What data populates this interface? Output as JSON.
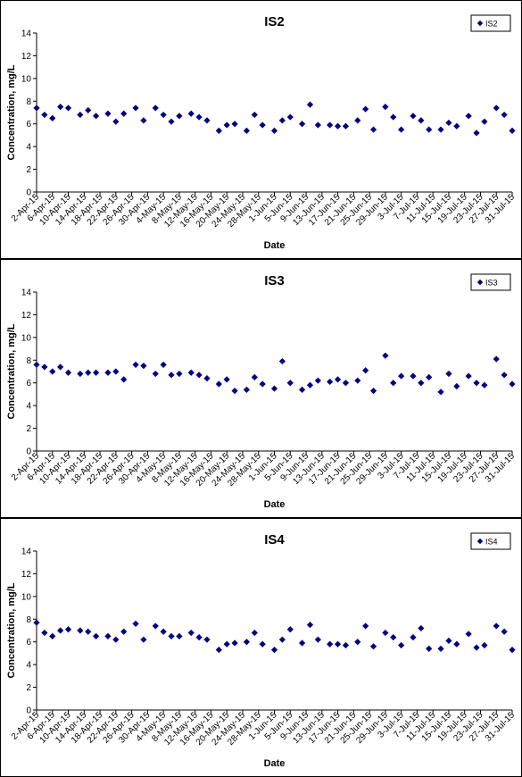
{
  "chart_data": [
    {
      "type": "scatter",
      "title": "IS2",
      "xlabel": "Date",
      "ylabel": "Concentration, mg/L",
      "ylim": [
        0,
        14
      ],
      "yticks": [
        0,
        2,
        4,
        6,
        8,
        10,
        12,
        14
      ],
      "date_range": [
        "2-Apr-15",
        "31-Jul-15"
      ],
      "x_tick_labels": [
        "2-Apr-15",
        "6-Apr-15",
        "10-Apr-15",
        "14-Apr-15",
        "18-Apr-15",
        "22-Apr-15",
        "26-Apr-15",
        "30-Apr-15",
        "4-May-15",
        "8-May-15",
        "12-May-15",
        "16-May-15",
        "20-May-15",
        "24-May-15",
        "28-May-15",
        "1-Jun-15",
        "5-Jun-15",
        "9-Jun-15",
        "13-Jun-15",
        "17-Jun-15",
        "21-Jun-15",
        "25-Jun-15",
        "29-Jun-15",
        "3-Jul-15",
        "7-Jul-15",
        "11-Jul-15",
        "15-Jul-15",
        "19-Jul-15",
        "23-Jul-15",
        "27-Jul-15",
        "31-Jul-15"
      ],
      "grid": false,
      "legend": "top-right",
      "color": "#000080",
      "series": [
        {
          "name": "IS2",
          "x": [
            "2-Apr-15",
            "4-Apr-15",
            "6-Apr-15",
            "8-Apr-15",
            "10-Apr-15",
            "13-Apr-15",
            "15-Apr-15",
            "17-Apr-15",
            "20-Apr-15",
            "22-Apr-15",
            "24-Apr-15",
            "27-Apr-15",
            "29-Apr-15",
            "2-May-15",
            "4-May-15",
            "6-May-15",
            "8-May-15",
            "11-May-15",
            "13-May-15",
            "15-May-15",
            "18-May-15",
            "20-May-15",
            "22-May-15",
            "25-May-15",
            "27-May-15",
            "29-May-15",
            "1-Jun-15",
            "3-Jun-15",
            "5-Jun-15",
            "8-Jun-15",
            "10-Jun-15",
            "12-Jun-15",
            "15-Jun-15",
            "17-Jun-15",
            "19-Jun-15",
            "22-Jun-15",
            "24-Jun-15",
            "26-Jun-15",
            "29-Jun-15",
            "1-Jul-15",
            "3-Jul-15",
            "6-Jul-15",
            "8-Jul-15",
            "10-Jul-15",
            "13-Jul-15",
            "15-Jul-15",
            "17-Jul-15",
            "20-Jul-15",
            "22-Jul-15",
            "24-Jul-15",
            "27-Jul-15",
            "29-Jul-15",
            "31-Jul-15"
          ],
          "y": [
            7.4,
            6.8,
            6.5,
            7.5,
            7.4,
            6.8,
            7.2,
            6.7,
            6.9,
            6.2,
            6.9,
            7.4,
            6.3,
            7.4,
            6.8,
            6.2,
            6.7,
            6.9,
            6.6,
            6.3,
            5.4,
            5.9,
            6.0,
            5.4,
            6.8,
            5.9,
            5.4,
            6.3,
            6.6,
            6.0,
            7.7,
            5.9,
            5.9,
            5.8,
            5.8,
            6.3,
            7.3,
            5.5,
            7.5,
            6.6,
            5.5,
            6.7,
            6.3,
            5.5,
            5.5,
            6.1,
            5.8,
            6.7,
            5.2,
            6.2,
            7.4,
            6.8,
            5.4
          ]
        }
      ]
    },
    {
      "type": "scatter",
      "title": "IS3",
      "xlabel": "Date",
      "ylabel": "Concentration, mg/L",
      "ylim": [
        0,
        14
      ],
      "yticks": [
        0,
        2,
        4,
        6,
        8,
        10,
        12,
        14
      ],
      "date_range": [
        "2-Apr-15",
        "31-Jul-15"
      ],
      "x_tick_labels": [
        "2-Apr-15",
        "6-Apr-15",
        "10-Apr-15",
        "14-Apr-15",
        "18-Apr-15",
        "22-Apr-15",
        "26-Apr-15",
        "30-Apr-15",
        "4-May-15",
        "8-May-15",
        "12-May-15",
        "16-May-15",
        "20-May-15",
        "24-May-15",
        "28-May-15",
        "1-Jun-15",
        "5-Jun-15",
        "9-Jun-15",
        "13-Jun-15",
        "17-Jun-15",
        "21-Jun-15",
        "25-Jun-15",
        "29-Jun-15",
        "3-Jul-15",
        "7-Jul-15",
        "11-Jul-15",
        "15-Jul-15",
        "19-Jul-15",
        "23-Jul-15",
        "27-Jul-15",
        "31-Jul-15"
      ],
      "grid": false,
      "legend": "top-right",
      "color": "#000080",
      "series": [
        {
          "name": "IS3",
          "x": [
            "2-Apr-15",
            "4-Apr-15",
            "6-Apr-15",
            "8-Apr-15",
            "10-Apr-15",
            "13-Apr-15",
            "15-Apr-15",
            "17-Apr-15",
            "20-Apr-15",
            "22-Apr-15",
            "24-Apr-15",
            "27-Apr-15",
            "29-Apr-15",
            "2-May-15",
            "4-May-15",
            "6-May-15",
            "8-May-15",
            "11-May-15",
            "13-May-15",
            "15-May-15",
            "18-May-15",
            "20-May-15",
            "22-May-15",
            "25-May-15",
            "27-May-15",
            "29-May-15",
            "1-Jun-15",
            "3-Jun-15",
            "5-Jun-15",
            "8-Jun-15",
            "10-Jun-15",
            "12-Jun-15",
            "15-Jun-15",
            "17-Jun-15",
            "19-Jun-15",
            "22-Jun-15",
            "24-Jun-15",
            "26-Jun-15",
            "29-Jun-15",
            "1-Jul-15",
            "3-Jul-15",
            "6-Jul-15",
            "8-Jul-15",
            "10-Jul-15",
            "13-Jul-15",
            "15-Jul-15",
            "17-Jul-15",
            "20-Jul-15",
            "22-Jul-15",
            "24-Jul-15",
            "27-Jul-15",
            "29-Jul-15",
            "31-Jul-15"
          ],
          "y": [
            7.6,
            7.4,
            7.0,
            7.4,
            6.9,
            6.8,
            6.9,
            6.9,
            6.9,
            7.0,
            6.3,
            7.6,
            7.5,
            6.8,
            7.6,
            6.7,
            6.8,
            6.9,
            6.7,
            6.4,
            5.9,
            6.3,
            5.3,
            5.4,
            6.5,
            5.9,
            5.5,
            7.9,
            6.0,
            5.4,
            5.8,
            6.2,
            6.1,
            6.3,
            6.0,
            6.2,
            7.1,
            5.3,
            8.4,
            6.0,
            6.6,
            6.6,
            6.0,
            6.5,
            5.2,
            6.8,
            5.7,
            6.6,
            6.0,
            5.8,
            8.1,
            6.7,
            5.9
          ]
        }
      ]
    },
    {
      "type": "scatter",
      "title": "IS4",
      "xlabel": "Date",
      "ylabel": "Concentration, mg/L",
      "ylim": [
        0,
        14
      ],
      "yticks": [
        0,
        2,
        4,
        6,
        8,
        10,
        12,
        14
      ],
      "date_range": [
        "2-Apr-15",
        "31-Jul-15"
      ],
      "x_tick_labels": [
        "2-Apr-15",
        "6-Apr-15",
        "10-Apr-15",
        "14-Apr-15",
        "18-Apr-15",
        "22-Apr-15",
        "26-Apr-15",
        "30-Apr-15",
        "4-May-15",
        "8-May-15",
        "12-May-15",
        "16-May-15",
        "20-May-15",
        "24-May-15",
        "28-May-15",
        "1-Jun-15",
        "5-Jun-15",
        "9-Jun-15",
        "13-Jun-15",
        "17-Jun-15",
        "21-Jun-15",
        "25-Jun-15",
        "29-Jun-15",
        "3-Jul-15",
        "7-Jul-15",
        "11-Jul-15",
        "15-Jul-15",
        "19-Jul-15",
        "23-Jul-15",
        "27-Jul-15",
        "31-Jul-15"
      ],
      "grid": false,
      "legend": "top-right",
      "color": "#000080",
      "series": [
        {
          "name": "IS4",
          "x": [
            "2-Apr-15",
            "4-Apr-15",
            "6-Apr-15",
            "8-Apr-15",
            "10-Apr-15",
            "13-Apr-15",
            "15-Apr-15",
            "17-Apr-15",
            "20-Apr-15",
            "22-Apr-15",
            "24-Apr-15",
            "27-Apr-15",
            "29-Apr-15",
            "2-May-15",
            "4-May-15",
            "6-May-15",
            "8-May-15",
            "11-May-15",
            "13-May-15",
            "15-May-15",
            "18-May-15",
            "20-May-15",
            "22-May-15",
            "25-May-15",
            "27-May-15",
            "29-May-15",
            "1-Jun-15",
            "3-Jun-15",
            "5-Jun-15",
            "8-Jun-15",
            "10-Jun-15",
            "12-Jun-15",
            "15-Jun-15",
            "17-Jun-15",
            "19-Jun-15",
            "22-Jun-15",
            "24-Jun-15",
            "26-Jun-15",
            "29-Jun-15",
            "1-Jul-15",
            "3-Jul-15",
            "6-Jul-15",
            "8-Jul-15",
            "10-Jul-15",
            "13-Jul-15",
            "15-Jul-15",
            "17-Jul-15",
            "20-Jul-15",
            "22-Jul-15",
            "24-Jul-15",
            "27-Jul-15",
            "29-Jul-15",
            "31-Jul-15"
          ],
          "y": [
            7.7,
            6.8,
            6.5,
            7.0,
            7.1,
            7.0,
            6.9,
            6.5,
            6.5,
            6.2,
            6.9,
            7.6,
            6.2,
            7.4,
            6.9,
            6.5,
            6.5,
            6.8,
            6.4,
            6.2,
            5.3,
            5.8,
            5.9,
            6.0,
            6.8,
            5.8,
            5.3,
            6.2,
            7.1,
            5.9,
            7.5,
            6.2,
            5.8,
            5.8,
            5.7,
            6.0,
            7.4,
            5.6,
            6.8,
            6.4,
            5.7,
            6.4,
            7.2,
            5.4,
            5.4,
            6.1,
            5.8,
            6.7,
            5.5,
            5.7,
            7.4,
            6.9,
            5.3
          ]
        }
      ]
    }
  ]
}
